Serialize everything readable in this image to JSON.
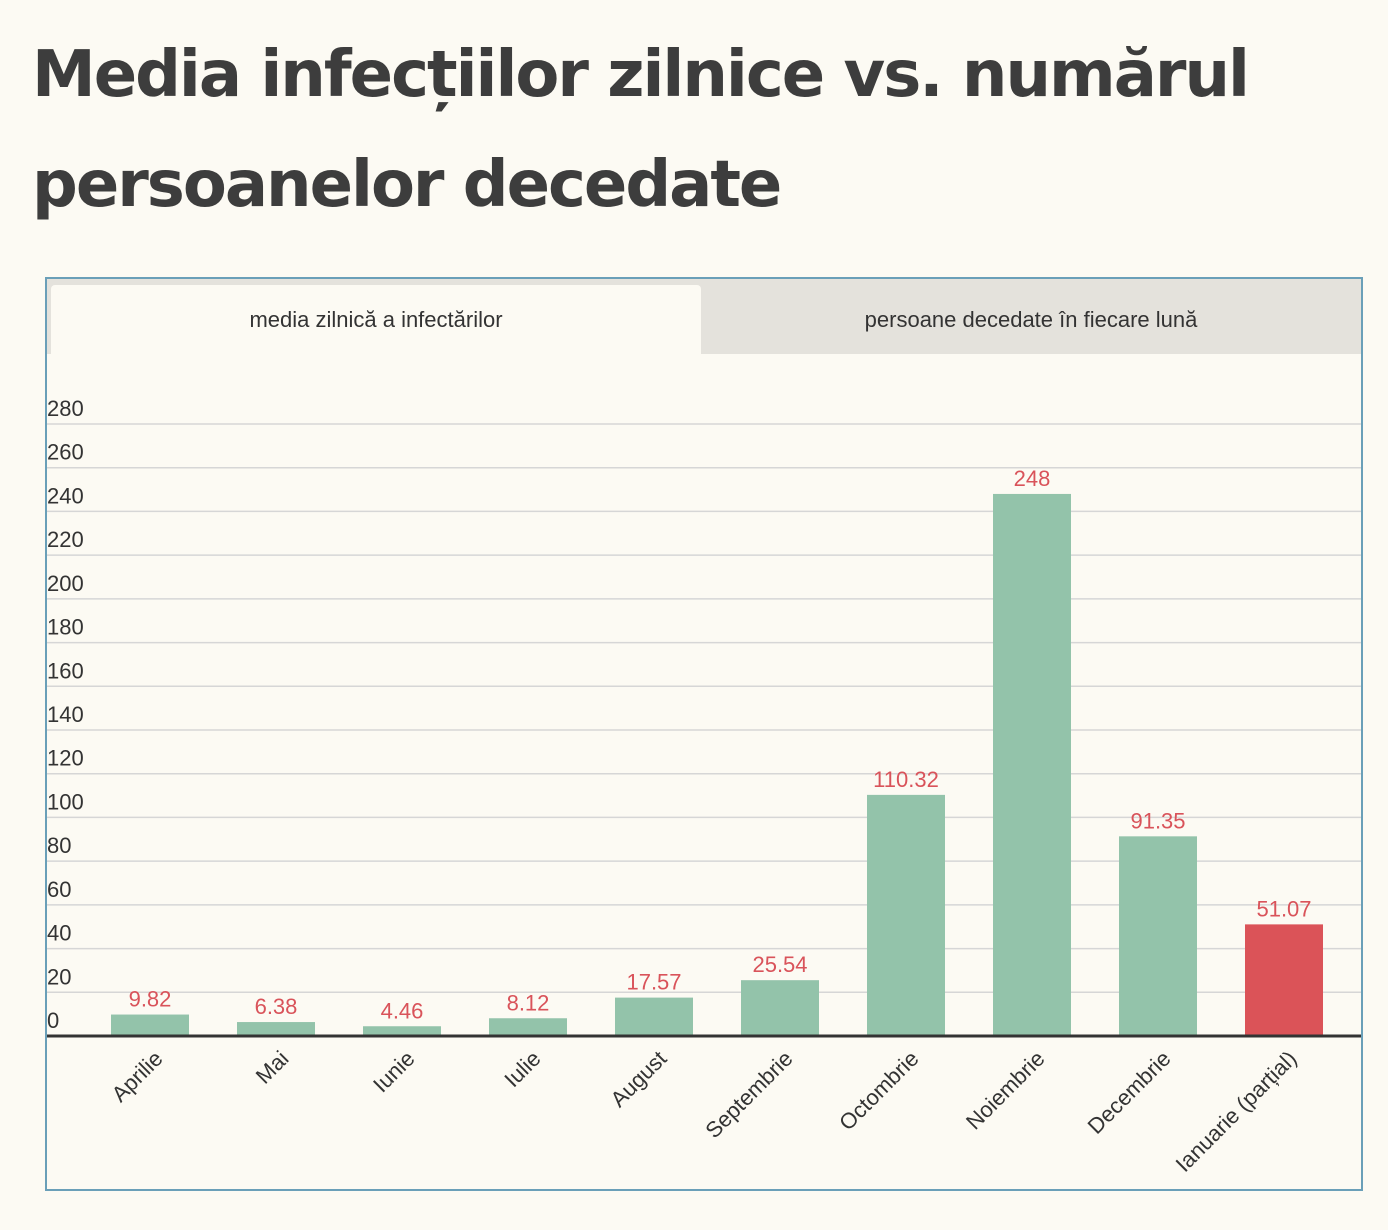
{
  "title": "Media infecțiilor zilnice vs. numărul persoanelor decedate",
  "tabs": [
    {
      "label": "media zilnică a infectărilor",
      "active": true
    },
    {
      "label": "persoane decedate în fiecare lună",
      "active": false
    }
  ],
  "colors": {
    "bar": "#93c3aa",
    "bar_highlight": "#db5358",
    "value_label": "#d9535a",
    "grid": "#d6d6d6",
    "baseline": "#333333",
    "frame_border": "#6a9fb8"
  },
  "chart_data": {
    "type": "bar",
    "categories": [
      "Aprilie",
      "Mai",
      "Iunie",
      "Iulie",
      "August",
      "Septembrie",
      "Octombrie",
      "Noiembrie",
      "Decembrie",
      "Ianuarie (parțial)"
    ],
    "values": [
      9.82,
      6.38,
      4.46,
      8.12,
      17.57,
      25.54,
      110.32,
      248,
      91.35,
      51.07
    ],
    "value_labels": [
      "9.82",
      "6.38",
      "4.46",
      "8.12",
      "17.57",
      "25.54",
      "110.32",
      "248",
      "91.35",
      "51.07"
    ],
    "highlight_index": 9,
    "yticks": [
      0,
      20,
      40,
      60,
      80,
      100,
      120,
      140,
      160,
      180,
      200,
      220,
      240,
      260,
      280
    ],
    "ylim": [
      0,
      280
    ],
    "grid": true
  }
}
